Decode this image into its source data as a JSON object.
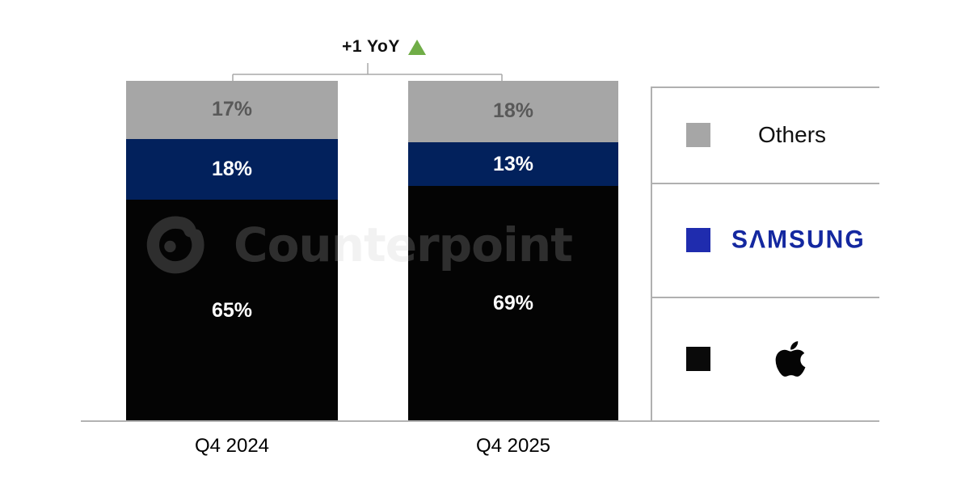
{
  "chart_data": {
    "type": "bar",
    "subtype": "100-percent-stacked-column",
    "title": "",
    "xlabel": "",
    "ylabel": "",
    "ylim": [
      0,
      100
    ],
    "grid": false,
    "legend_position": "right",
    "value_suffix": "%",
    "categories": [
      "Q4 2024",
      "Q4 2025"
    ],
    "series": [
      {
        "name": "Others",
        "values": [
          17,
          18
        ],
        "color": "#a6a6a6",
        "label_color": "#595959"
      },
      {
        "name": "Samsung",
        "values": [
          18,
          13
        ],
        "color": "#02215c",
        "label_color": "#ffffff"
      },
      {
        "name": "Apple",
        "values": [
          65,
          69
        ],
        "color": "#040404",
        "label_color": "#ffffff"
      }
    ],
    "annotation": {
      "text": "+1 YoY",
      "symbol": "up-triangle",
      "color": "#70ad47"
    }
  },
  "legend": {
    "items": [
      {
        "label": "Others",
        "swatch_color": "#a6a6a6",
        "render": "text"
      },
      {
        "label": "SAMSUNG",
        "swatch_color": "#1f2cae",
        "text_color": "#1428a0",
        "render": "wordmark"
      },
      {
        "label": "Apple",
        "swatch_color": "#0a0a0a",
        "render": "apple-logo-icon"
      }
    ]
  },
  "watermark": {
    "text": "Counterpoint",
    "logo": "counterpoint-logo-icon"
  }
}
